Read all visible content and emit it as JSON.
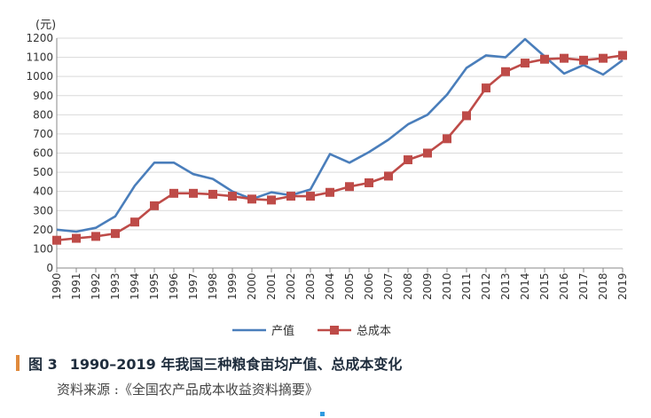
{
  "chart_data": {
    "type": "line",
    "unit_label": "(元)",
    "x": [
      1990,
      1991,
      1992,
      1993,
      1994,
      1995,
      1996,
      1997,
      1998,
      1999,
      2000,
      2001,
      2002,
      2003,
      2004,
      2005,
      2006,
      2007,
      2008,
      2009,
      2010,
      2011,
      2012,
      2013,
      2014,
      2015,
      2016,
      2017,
      2018,
      2019
    ],
    "ylim": [
      0,
      1200
    ],
    "yticks": [
      0,
      100,
      200,
      300,
      400,
      500,
      600,
      700,
      800,
      900,
      1000,
      1100,
      1200
    ],
    "grid": true,
    "legend_position": "bottom",
    "series": [
      {
        "name": "产值",
        "color": "#4a7ebb",
        "marker": "none",
        "values": [
          200,
          190,
          210,
          270,
          430,
          550,
          550,
          490,
          465,
          400,
          360,
          395,
          380,
          410,
          595,
          550,
          605,
          670,
          750,
          800,
          905,
          1045,
          1110,
          1100,
          1195,
          1105,
          1015,
          1060,
          1010,
          1085
        ]
      },
      {
        "name": "总成本",
        "color": "#be4b48",
        "marker": "square",
        "values": [
          145,
          155,
          165,
          180,
          240,
          325,
          390,
          390,
          385,
          375,
          360,
          355,
          375,
          375,
          395,
          425,
          445,
          480,
          565,
          600,
          675,
          795,
          940,
          1025,
          1070,
          1090,
          1095,
          1085,
          1095,
          1110
        ]
      }
    ]
  },
  "caption": {
    "label": "图 3",
    "title": "1990–2019 年我国三种粮食亩均产值、总成本变化"
  },
  "source": "资料来源 :《全国农产品成本收益资料摘要》"
}
